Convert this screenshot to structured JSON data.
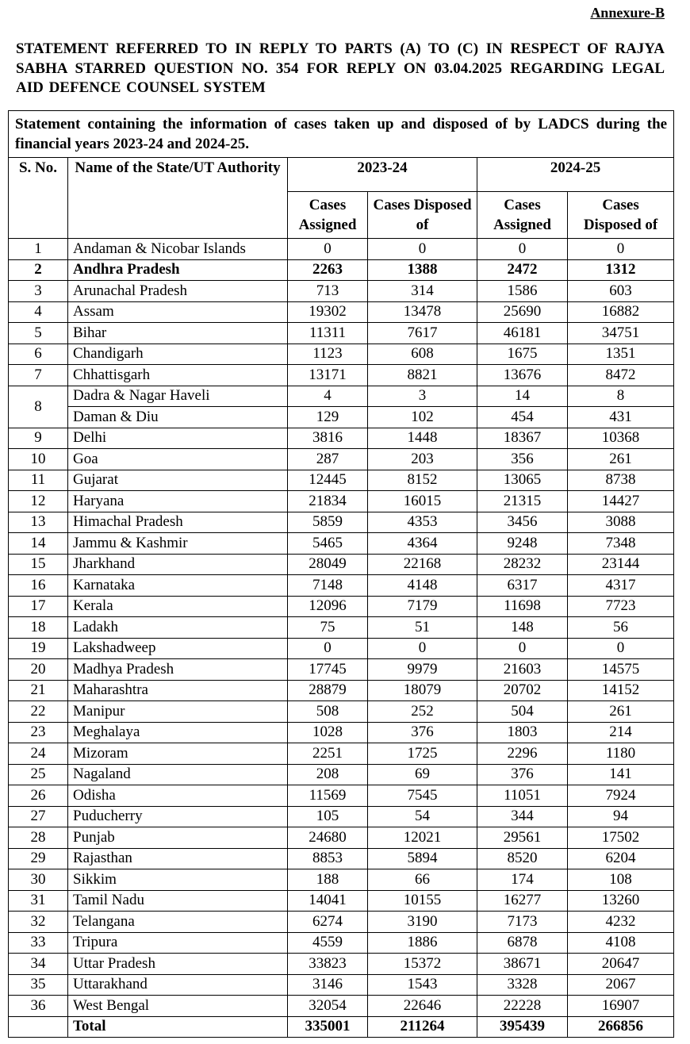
{
  "annexure": "Annexure-B",
  "title": "STATEMENT REFERRED TO IN REPLY TO PARTS (A) TO (C) IN RESPECT OF RAJYA SABHA STARRED QUESTION NO. 354 FOR REPLY ON 03.04.2025 REGARDING LEGAL AID DEFENCE COUNSEL SYSTEM",
  "table": {
    "caption": "Statement containing the information of cases taken up and disposed of by LADCS during the financial years 2023-24 and 2024-25.",
    "header": {
      "sno": "S. No.",
      "name": "Name of the State/UT Authority",
      "years": [
        "2023-24",
        "2024-25"
      ],
      "sub": [
        "Cases Assigned",
        "Cases Disposed of",
        "Cases Assigned",
        "Cases Disposed of"
      ]
    },
    "rows": [
      [
        1,
        "Andaman & Nicobar Islands",
        0,
        0,
        0,
        0
      ],
      [
        2,
        "Andhra Pradesh",
        2263,
        1388,
        2472,
        1312
      ],
      [
        3,
        "Arunachal Pradesh",
        713,
        314,
        1586,
        603
      ],
      [
        4,
        "Assam",
        19302,
        13478,
        25690,
        16882
      ],
      [
        5,
        "Bihar",
        11311,
        7617,
        46181,
        34751
      ],
      [
        6,
        "Chandigarh",
        1123,
        608,
        1675,
        1351
      ],
      [
        7,
        "Chhattisgarh",
        13171,
        8821,
        13676,
        8472
      ],
      [
        8,
        "Dadra & Nagar Haveli",
        4,
        3,
        14,
        8
      ],
      [
        "Daman & Diu",
        129,
        102,
        454,
        431
      ],
      [
        9,
        "Delhi",
        3816,
        1448,
        18367,
        10368
      ],
      [
        10,
        "Goa",
        287,
        203,
        356,
        261
      ],
      [
        11,
        "Gujarat",
        12445,
        8152,
        13065,
        8738
      ],
      [
        12,
        "Haryana",
        21834,
        16015,
        21315,
        14427
      ],
      [
        13,
        "Himachal Pradesh",
        5859,
        4353,
        3456,
        3088
      ],
      [
        14,
        "Jammu & Kashmir",
        5465,
        4364,
        9248,
        7348
      ],
      [
        15,
        "Jharkhand",
        28049,
        22168,
        28232,
        23144
      ],
      [
        16,
        "Karnataka",
        7148,
        4148,
        6317,
        4317
      ],
      [
        17,
        "Kerala",
        12096,
        7179,
        11698,
        7723
      ],
      [
        18,
        "Ladakh",
        75,
        51,
        148,
        56
      ],
      [
        19,
        "Lakshadweep",
        0,
        0,
        0,
        0
      ],
      [
        20,
        "Madhya Pradesh",
        17745,
        9979,
        21603,
        14575
      ],
      [
        21,
        "Maharashtra",
        28879,
        18079,
        20702,
        14152
      ],
      [
        22,
        "Manipur",
        508,
        252,
        504,
        261
      ],
      [
        23,
        "Meghalaya",
        1028,
        376,
        1803,
        214
      ],
      [
        24,
        "Mizoram",
        2251,
        1725,
        2296,
        1180
      ],
      [
        25,
        "Nagaland",
        208,
        69,
        376,
        141
      ],
      [
        26,
        "Odisha",
        11569,
        7545,
        11051,
        7924
      ],
      [
        27,
        "Puducherry",
        105,
        54,
        344,
        94
      ],
      [
        28,
        "Punjab",
        24680,
        12021,
        29561,
        17502
      ],
      [
        29,
        "Rajasthan",
        8853,
        5894,
        8520,
        6204
      ],
      [
        30,
        "Sikkim",
        188,
        66,
        174,
        108
      ],
      [
        31,
        "Tamil Nadu",
        14041,
        10155,
        16277,
        13260
      ],
      [
        32,
        "Telangana",
        6274,
        3190,
        7173,
        4232
      ],
      [
        33,
        "Tripura",
        4559,
        1886,
        6878,
        4108
      ],
      [
        34,
        "Uttar Pradesh",
        33823,
        15372,
        38671,
        20647
      ],
      [
        35,
        "Uttarakhand",
        3146,
        1543,
        3328,
        2067
      ],
      [
        36,
        "West Bengal",
        32054,
        22646,
        22228,
        16907
      ]
    ],
    "total": [
      "Total",
      335001,
      211264,
      395439,
      266856
    ]
  }
}
